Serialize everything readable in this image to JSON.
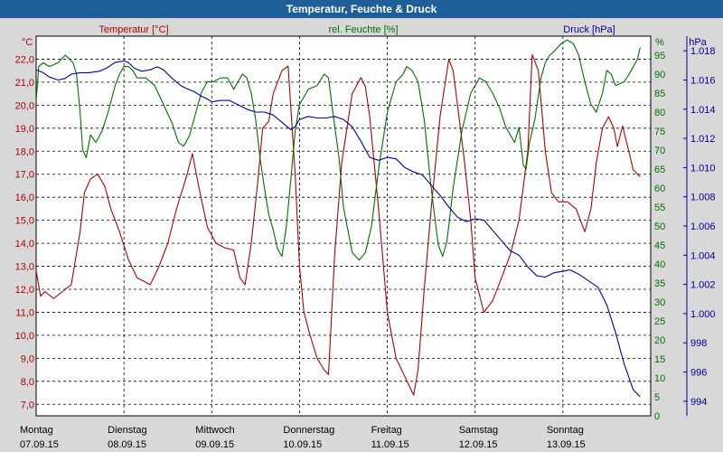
{
  "title": "Temperatur, Feuchte & Druck",
  "colors": {
    "temp": "#b00000",
    "hum": "#007000",
    "press": "#00009a",
    "title_bg": "#1f5f99",
    "plot_bg": "#ffffff",
    "frame_bg": "#d8d8d8"
  },
  "chart_data": {
    "type": "line",
    "title": "Temperatur, Feuchte & Druck",
    "x_range_days": [
      0,
      7
    ],
    "day_labels": [
      {
        "day": "Montag",
        "date": "07.09.15"
      },
      {
        "day": "Dienstag",
        "date": "08.09.15"
      },
      {
        "day": "Mittwoch",
        "date": "09.09.15"
      },
      {
        "day": "Donnerstag",
        "date": "10.09.15"
      },
      {
        "day": "Freitag",
        "date": "11.09.15"
      },
      {
        "day": "Samstag",
        "date": "12.09.15"
      },
      {
        "day": "Sonntag",
        "date": "13.09.15"
      }
    ],
    "axes": {
      "temp": {
        "label": "Temperatur [°C]",
        "unit": "°C",
        "range": [
          6.5,
          23.0
        ],
        "ticks": [
          "22,0",
          "21,0",
          "20,0",
          "19,0",
          "18,0",
          "17,0",
          "16,0",
          "15,0",
          "14,0",
          "13,0",
          "12,0",
          "11,0",
          "10,0",
          "9,0",
          "8,0",
          "7,0"
        ],
        "tick_values": [
          22,
          21,
          20,
          19,
          18,
          17,
          16,
          15,
          14,
          13,
          12,
          11,
          10,
          9,
          8,
          7
        ]
      },
      "hum": {
        "label": "rel. Feuchte [%]",
        "unit": "%",
        "range": [
          0,
          100
        ],
        "ticks": [
          "95",
          "90",
          "85",
          "80",
          "75",
          "70",
          "65",
          "60",
          "55",
          "50",
          "45",
          "40",
          "35",
          "30",
          "25",
          "20",
          "15",
          "10",
          "5",
          "0"
        ],
        "tick_values": [
          95,
          90,
          85,
          80,
          75,
          70,
          65,
          60,
          55,
          50,
          45,
          40,
          35,
          30,
          25,
          20,
          15,
          10,
          5,
          0
        ]
      },
      "press": {
        "label": "Druck [hPa]",
        "unit": "hPa",
        "range": [
          993,
          1019
        ],
        "ticks": [
          "1.018",
          "1.016",
          "1.014",
          "1.012",
          "1.010",
          "1.008",
          "1.006",
          "1.004",
          "1.002",
          "1.000",
          "998",
          "996",
          "994"
        ],
        "tick_values": [
          1018,
          1016,
          1014,
          1012,
          1010,
          1008,
          1006,
          1004,
          1002,
          1000,
          998,
          996,
          994
        ]
      }
    },
    "series": [
      {
        "name": "Temperatur",
        "axis": "temp",
        "points": [
          [
            0,
            12.8
          ],
          [
            0.05,
            11.7
          ],
          [
            0.1,
            11.9
          ],
          [
            0.2,
            11.6
          ],
          [
            0.3,
            11.9
          ],
          [
            0.4,
            12.2
          ],
          [
            0.5,
            14.5
          ],
          [
            0.55,
            16.2
          ],
          [
            0.62,
            16.8
          ],
          [
            0.7,
            17.0
          ],
          [
            0.78,
            16.5
          ],
          [
            0.85,
            15.5
          ],
          [
            0.95,
            14.5
          ],
          [
            1.05,
            13.3
          ],
          [
            1.15,
            12.5
          ],
          [
            1.3,
            12.2
          ],
          [
            1.4,
            13.0
          ],
          [
            1.5,
            14.0
          ],
          [
            1.6,
            15.5
          ],
          [
            1.72,
            17.0
          ],
          [
            1.78,
            17.9
          ],
          [
            1.85,
            16.5
          ],
          [
            1.95,
            14.7
          ],
          [
            2.05,
            14.0
          ],
          [
            2.15,
            13.8
          ],
          [
            2.25,
            13.7
          ],
          [
            2.32,
            12.5
          ],
          [
            2.38,
            12.2
          ],
          [
            2.45,
            14.0
          ],
          [
            2.52,
            16.5
          ],
          [
            2.58,
            19.0
          ],
          [
            2.65,
            19.3
          ],
          [
            2.7,
            20.5
          ],
          [
            2.8,
            21.5
          ],
          [
            2.87,
            21.7
          ],
          [
            2.95,
            17.0
          ],
          [
            3.0,
            13.0
          ],
          [
            3.05,
            11.0
          ],
          [
            3.12,
            10.0
          ],
          [
            3.2,
            9.0
          ],
          [
            3.28,
            8.5
          ],
          [
            3.33,
            8.3
          ],
          [
            3.4,
            13.5
          ],
          [
            3.48,
            17.5
          ],
          [
            3.6,
            20.5
          ],
          [
            3.7,
            21.2
          ],
          [
            3.75,
            20.8
          ],
          [
            3.8,
            19.5
          ],
          [
            3.9,
            15.5
          ],
          [
            4.0,
            11.0
          ],
          [
            4.1,
            9.0
          ],
          [
            4.2,
            8.2
          ],
          [
            4.3,
            7.4
          ],
          [
            4.35,
            8.5
          ],
          [
            4.42,
            12.0
          ],
          [
            4.5,
            15.5
          ],
          [
            4.6,
            19.5
          ],
          [
            4.7,
            22.0
          ],
          [
            4.75,
            21.5
          ],
          [
            4.8,
            20.0
          ],
          [
            4.88,
            17.5
          ],
          [
            4.95,
            15.0
          ],
          [
            5.0,
            12.5
          ],
          [
            5.1,
            11.0
          ],
          [
            5.2,
            11.5
          ],
          [
            5.3,
            12.5
          ],
          [
            5.4,
            13.5
          ],
          [
            5.5,
            15.0
          ],
          [
            5.6,
            18.0
          ],
          [
            5.65,
            22.2
          ],
          [
            5.72,
            21.5
          ],
          [
            5.8,
            18.0
          ],
          [
            5.87,
            16.2
          ],
          [
            5.95,
            15.8
          ],
          [
            6.05,
            15.8
          ],
          [
            6.15,
            15.5
          ],
          [
            6.25,
            14.5
          ],
          [
            6.32,
            15.5
          ],
          [
            6.38,
            17.5
          ],
          [
            6.45,
            19.0
          ],
          [
            6.52,
            19.5
          ],
          [
            6.58,
            19.0
          ],
          [
            6.62,
            18.2
          ],
          [
            6.68,
            19.1
          ],
          [
            6.75,
            18.0
          ],
          [
            6.8,
            17.2
          ],
          [
            6.85,
            17.0
          ],
          [
            6.88,
            16.9
          ]
        ]
      },
      {
        "name": "rel. Feuchte",
        "axis": "hum",
        "points": [
          [
            0,
            83
          ],
          [
            0.03,
            92
          ],
          [
            0.08,
            93
          ],
          [
            0.15,
            92
          ],
          [
            0.25,
            93
          ],
          [
            0.33,
            95
          ],
          [
            0.38,
            94
          ],
          [
            0.42,
            93
          ],
          [
            0.46,
            90
          ],
          [
            0.5,
            80
          ],
          [
            0.53,
            70
          ],
          [
            0.57,
            68
          ],
          [
            0.62,
            74
          ],
          [
            0.68,
            72
          ],
          [
            0.75,
            75
          ],
          [
            0.82,
            80
          ],
          [
            0.9,
            87
          ],
          [
            0.95,
            90
          ],
          [
            1.0,
            92
          ],
          [
            1.05,
            92
          ],
          [
            1.1,
            91
          ],
          [
            1.15,
            89
          ],
          [
            1.25,
            89
          ],
          [
            1.35,
            87
          ],
          [
            1.45,
            82
          ],
          [
            1.55,
            77
          ],
          [
            1.62,
            72
          ],
          [
            1.68,
            71
          ],
          [
            1.75,
            74
          ],
          [
            1.82,
            80
          ],
          [
            1.88,
            85
          ],
          [
            1.95,
            88
          ],
          [
            2.02,
            88
          ],
          [
            2.1,
            89
          ],
          [
            2.18,
            89
          ],
          [
            2.25,
            86
          ],
          [
            2.3,
            88
          ],
          [
            2.35,
            90
          ],
          [
            2.4,
            89
          ],
          [
            2.45,
            85
          ],
          [
            2.5,
            78
          ],
          [
            2.55,
            68
          ],
          [
            2.6,
            60
          ],
          [
            2.65,
            53
          ],
          [
            2.7,
            49
          ],
          [
            2.75,
            44
          ],
          [
            2.8,
            42
          ],
          [
            2.85,
            50
          ],
          [
            2.9,
            62
          ],
          [
            2.95,
            75
          ],
          [
            3.0,
            82
          ],
          [
            3.1,
            86
          ],
          [
            3.2,
            87
          ],
          [
            3.28,
            90
          ],
          [
            3.33,
            89
          ],
          [
            3.38,
            80
          ],
          [
            3.45,
            68
          ],
          [
            3.5,
            55
          ],
          [
            3.6,
            43
          ],
          [
            3.68,
            41
          ],
          [
            3.75,
            43
          ],
          [
            3.82,
            50
          ],
          [
            3.9,
            65
          ],
          [
            4.0,
            80
          ],
          [
            4.1,
            88
          ],
          [
            4.18,
            90
          ],
          [
            4.22,
            92
          ],
          [
            4.28,
            91
          ],
          [
            4.35,
            88
          ],
          [
            4.42,
            78
          ],
          [
            4.5,
            60
          ],
          [
            4.58,
            45
          ],
          [
            4.63,
            42
          ],
          [
            4.68,
            46
          ],
          [
            4.75,
            60
          ],
          [
            4.85,
            75
          ],
          [
            4.95,
            85
          ],
          [
            5.05,
            89
          ],
          [
            5.12,
            88
          ],
          [
            5.2,
            85
          ],
          [
            5.28,
            81
          ],
          [
            5.35,
            76
          ],
          [
            5.4,
            74
          ],
          [
            5.45,
            72
          ],
          [
            5.5,
            76
          ],
          [
            5.55,
            66
          ],
          [
            5.58,
            65
          ],
          [
            5.62,
            72
          ],
          [
            5.68,
            78
          ],
          [
            5.75,
            89
          ],
          [
            5.8,
            93
          ],
          [
            5.85,
            95
          ],
          [
            5.9,
            96
          ],
          [
            5.98,
            98
          ],
          [
            6.05,
            99
          ],
          [
            6.12,
            98
          ],
          [
            6.18,
            95
          ],
          [
            6.25,
            88
          ],
          [
            6.32,
            82
          ],
          [
            6.38,
            80
          ],
          [
            6.45,
            85
          ],
          [
            6.5,
            91
          ],
          [
            6.55,
            90
          ],
          [
            6.6,
            87
          ],
          [
            6.7,
            88
          ],
          [
            6.78,
            91
          ],
          [
            6.85,
            94
          ],
          [
            6.88,
            97
          ]
        ]
      },
      {
        "name": "Druck",
        "axis": "press",
        "points": [
          [
            0,
            1016.7
          ],
          [
            0.08,
            1016.5
          ],
          [
            0.15,
            1016.2
          ],
          [
            0.25,
            1016.0
          ],
          [
            0.33,
            1016.1
          ],
          [
            0.4,
            1016.4
          ],
          [
            0.5,
            1016.5
          ],
          [
            0.6,
            1016.5
          ],
          [
            0.72,
            1016.6
          ],
          [
            0.8,
            1016.8
          ],
          [
            0.9,
            1017.2
          ],
          [
            1.0,
            1017.3
          ],
          [
            1.05,
            1017.2
          ],
          [
            1.12,
            1016.8
          ],
          [
            1.2,
            1016.6
          ],
          [
            1.3,
            1016.7
          ],
          [
            1.38,
            1016.9
          ],
          [
            1.45,
            1016.7
          ],
          [
            1.5,
            1016.4
          ],
          [
            1.55,
            1016.1
          ],
          [
            1.65,
            1015.6
          ],
          [
            1.72,
            1015.4
          ],
          [
            1.8,
            1015.2
          ],
          [
            1.88,
            1014.9
          ],
          [
            1.95,
            1014.7
          ],
          [
            2.0,
            1014.5
          ],
          [
            2.1,
            1014.6
          ],
          [
            2.2,
            1014.6
          ],
          [
            2.3,
            1014.3
          ],
          [
            2.4,
            1014.0
          ],
          [
            2.5,
            1013.8
          ],
          [
            2.6,
            1013.8
          ],
          [
            2.7,
            1013.6
          ],
          [
            2.8,
            1013.1
          ],
          [
            2.9,
            1012.6
          ],
          [
            2.95,
            1012.8
          ],
          [
            3.0,
            1013.3
          ],
          [
            3.1,
            1013.5
          ],
          [
            3.2,
            1013.4
          ],
          [
            3.3,
            1013.4
          ],
          [
            3.4,
            1013.5
          ],
          [
            3.5,
            1013.3
          ],
          [
            3.6,
            1012.8
          ],
          [
            3.7,
            1011.8
          ],
          [
            3.8,
            1010.7
          ],
          [
            3.9,
            1010.5
          ],
          [
            4.0,
            1010.7
          ],
          [
            4.1,
            1010.6
          ],
          [
            4.2,
            1010.0
          ],
          [
            4.3,
            1009.7
          ],
          [
            4.4,
            1009.5
          ],
          [
            4.5,
            1008.8
          ],
          [
            4.6,
            1008.1
          ],
          [
            4.7,
            1007.3
          ],
          [
            4.8,
            1006.6
          ],
          [
            4.9,
            1006.3
          ],
          [
            5.0,
            1006.5
          ],
          [
            5.1,
            1006.4
          ],
          [
            5.2,
            1005.7
          ],
          [
            5.3,
            1005.0
          ],
          [
            5.4,
            1004.3
          ],
          [
            5.5,
            1004.0
          ],
          [
            5.6,
            1003.2
          ],
          [
            5.7,
            1002.6
          ],
          [
            5.8,
            1002.5
          ],
          [
            5.9,
            1002.8
          ],
          [
            6.0,
            1002.9
          ],
          [
            6.08,
            1003.0
          ],
          [
            6.18,
            1002.7
          ],
          [
            6.28,
            1002.3
          ],
          [
            6.4,
            1001.8
          ],
          [
            6.5,
            1000.6
          ],
          [
            6.6,
            998.7
          ],
          [
            6.7,
            996.5
          ],
          [
            6.8,
            994.8
          ],
          [
            6.88,
            994.3
          ]
        ]
      }
    ]
  }
}
